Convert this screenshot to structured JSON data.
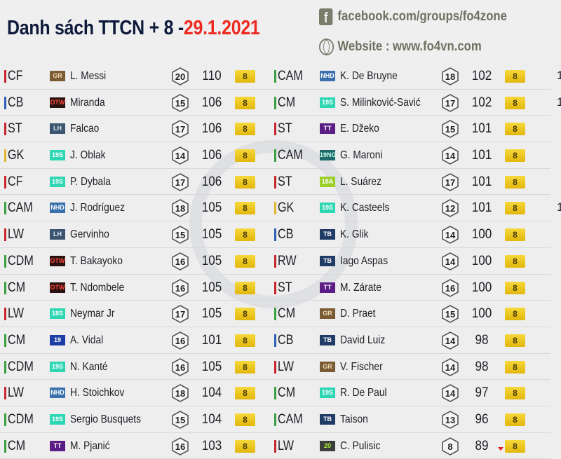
{
  "header": {
    "title": "Danh sách TTCN + 8 -",
    "date": "29.1.2021",
    "facebook": "facebook.com/groups/fo4zone",
    "website": "Website :  www.fo4vn.com"
  },
  "watermark": {
    "logo_text": "FO4VN.COM",
    "slogan": "BECOME A LEGEND"
  },
  "colors": {
    "attack": "#c8262c",
    "defense": "#2f5fb5",
    "gk": "#e0b830",
    "mid": "#3aa040",
    "date": "#ec2a1f",
    "plus_badge": "#f0c820"
  },
  "left_column": [
    {
      "pos": "CF",
      "role": "attack",
      "season": "GR",
      "name": "L. Messi",
      "level": "20",
      "ovr": "110",
      "plus": "8"
    },
    {
      "pos": "CB",
      "role": "defense",
      "season": "OTW",
      "name": "Miranda",
      "level": "15",
      "ovr": "106",
      "plus": "8"
    },
    {
      "pos": "ST",
      "role": "attack",
      "season": "LH",
      "name": "Falcao",
      "level": "17",
      "ovr": "106",
      "plus": "8"
    },
    {
      "pos": "GK",
      "role": "gk",
      "season": "19S",
      "name": "J. Oblak",
      "level": "14",
      "ovr": "106",
      "plus": "8"
    },
    {
      "pos": "CF",
      "role": "attack",
      "season": "19S",
      "name": "P. Dybala",
      "level": "17",
      "ovr": "106",
      "plus": "8"
    },
    {
      "pos": "CAM",
      "role": "mid",
      "season": "NHD",
      "name": "J. Rodríguez",
      "level": "18",
      "ovr": "105",
      "plus": "8"
    },
    {
      "pos": "LW",
      "role": "attack",
      "season": "LH",
      "name": "Gervinho",
      "level": "15",
      "ovr": "105",
      "plus": "8"
    },
    {
      "pos": "CDM",
      "role": "mid",
      "season": "OTW",
      "name": "T. Bakayoko",
      "level": "16",
      "ovr": "105",
      "plus": "8"
    },
    {
      "pos": "CM",
      "role": "mid",
      "season": "OTW",
      "name": "T. Ndombele",
      "level": "16",
      "ovr": "105",
      "plus": "8"
    },
    {
      "pos": "LW",
      "role": "attack",
      "season": "18S",
      "name": "Neymar Jr",
      "level": "17",
      "ovr": "105",
      "plus": "8"
    },
    {
      "pos": "CM",
      "role": "mid",
      "season": "19",
      "name": "A. Vidal",
      "level": "16",
      "ovr": "101",
      "plus": "8"
    },
    {
      "pos": "CDM",
      "role": "mid",
      "season": "19S",
      "name": "N. Kanté",
      "level": "16",
      "ovr": "105",
      "plus": "8"
    },
    {
      "pos": "LW",
      "role": "attack",
      "season": "NHD",
      "name": "H. Stoichkov",
      "level": "18",
      "ovr": "104",
      "plus": "8"
    },
    {
      "pos": "CDM",
      "role": "mid",
      "season": "19S",
      "name": "Sergio Busquets",
      "level": "15",
      "ovr": "104",
      "plus": "8"
    },
    {
      "pos": "CM",
      "role": "mid",
      "season": "TT",
      "name": "M. Pjanić",
      "level": "16",
      "ovr": "103",
      "plus": "8"
    }
  ],
  "right_column": [
    {
      "pos": "CAM",
      "role": "mid",
      "season": "NHD",
      "name": "K. De Bruyne",
      "level": "18",
      "ovr": "102",
      "plus": "8",
      "extra": "1"
    },
    {
      "pos": "CM",
      "role": "mid",
      "season": "19S",
      "name": "S. Milinković-Savić",
      "level": "17",
      "ovr": "102",
      "plus": "8",
      "extra": "1"
    },
    {
      "pos": "ST",
      "role": "attack",
      "season": "TT",
      "name": "E. Džeko",
      "level": "15",
      "ovr": "101",
      "plus": "8"
    },
    {
      "pos": "CAM",
      "role": "mid",
      "season": "19NG",
      "name": "G. Maroni",
      "level": "14",
      "ovr": "101",
      "plus": "8"
    },
    {
      "pos": "ST",
      "role": "attack",
      "season": "18A",
      "name": "L. Suárez",
      "level": "17",
      "ovr": "101",
      "plus": "8"
    },
    {
      "pos": "GK",
      "role": "gk",
      "season": "19S",
      "name": "K. Casteels",
      "level": "12",
      "ovr": "101",
      "plus": "8",
      "extra": "1"
    },
    {
      "pos": "CB",
      "role": "defense",
      "season": "TB",
      "name": "K. Glik",
      "level": "14",
      "ovr": "100",
      "plus": "8"
    },
    {
      "pos": "RW",
      "role": "attack",
      "season": "TB",
      "name": "Iago Aspas",
      "level": "14",
      "ovr": "100",
      "plus": "8"
    },
    {
      "pos": "ST",
      "role": "attack",
      "season": "TT",
      "name": "M. Zárate",
      "level": "16",
      "ovr": "100",
      "plus": "8"
    },
    {
      "pos": "CM",
      "role": "mid",
      "season": "GR",
      "name": "D. Praet",
      "level": "15",
      "ovr": "100",
      "plus": "8"
    },
    {
      "pos": "CB",
      "role": "defense",
      "season": "TB",
      "name": "David Luiz",
      "level": "14",
      "ovr": "98",
      "plus": "8"
    },
    {
      "pos": "LW",
      "role": "attack",
      "season": "GR",
      "name": "V. Fischer",
      "level": "14",
      "ovr": "98",
      "plus": "8"
    },
    {
      "pos": "CM",
      "role": "mid",
      "season": "19S",
      "name": "R. De Paul",
      "level": "14",
      "ovr": "97",
      "plus": "8"
    },
    {
      "pos": "CAM",
      "role": "mid",
      "season": "TB",
      "name": "Taison",
      "level": "13",
      "ovr": "96",
      "plus": "8"
    },
    {
      "pos": "LW",
      "role": "attack",
      "season": "20",
      "name": "C. Pulisic",
      "level": "8",
      "ovr": "89",
      "plus": "8",
      "trend": "down"
    }
  ]
}
